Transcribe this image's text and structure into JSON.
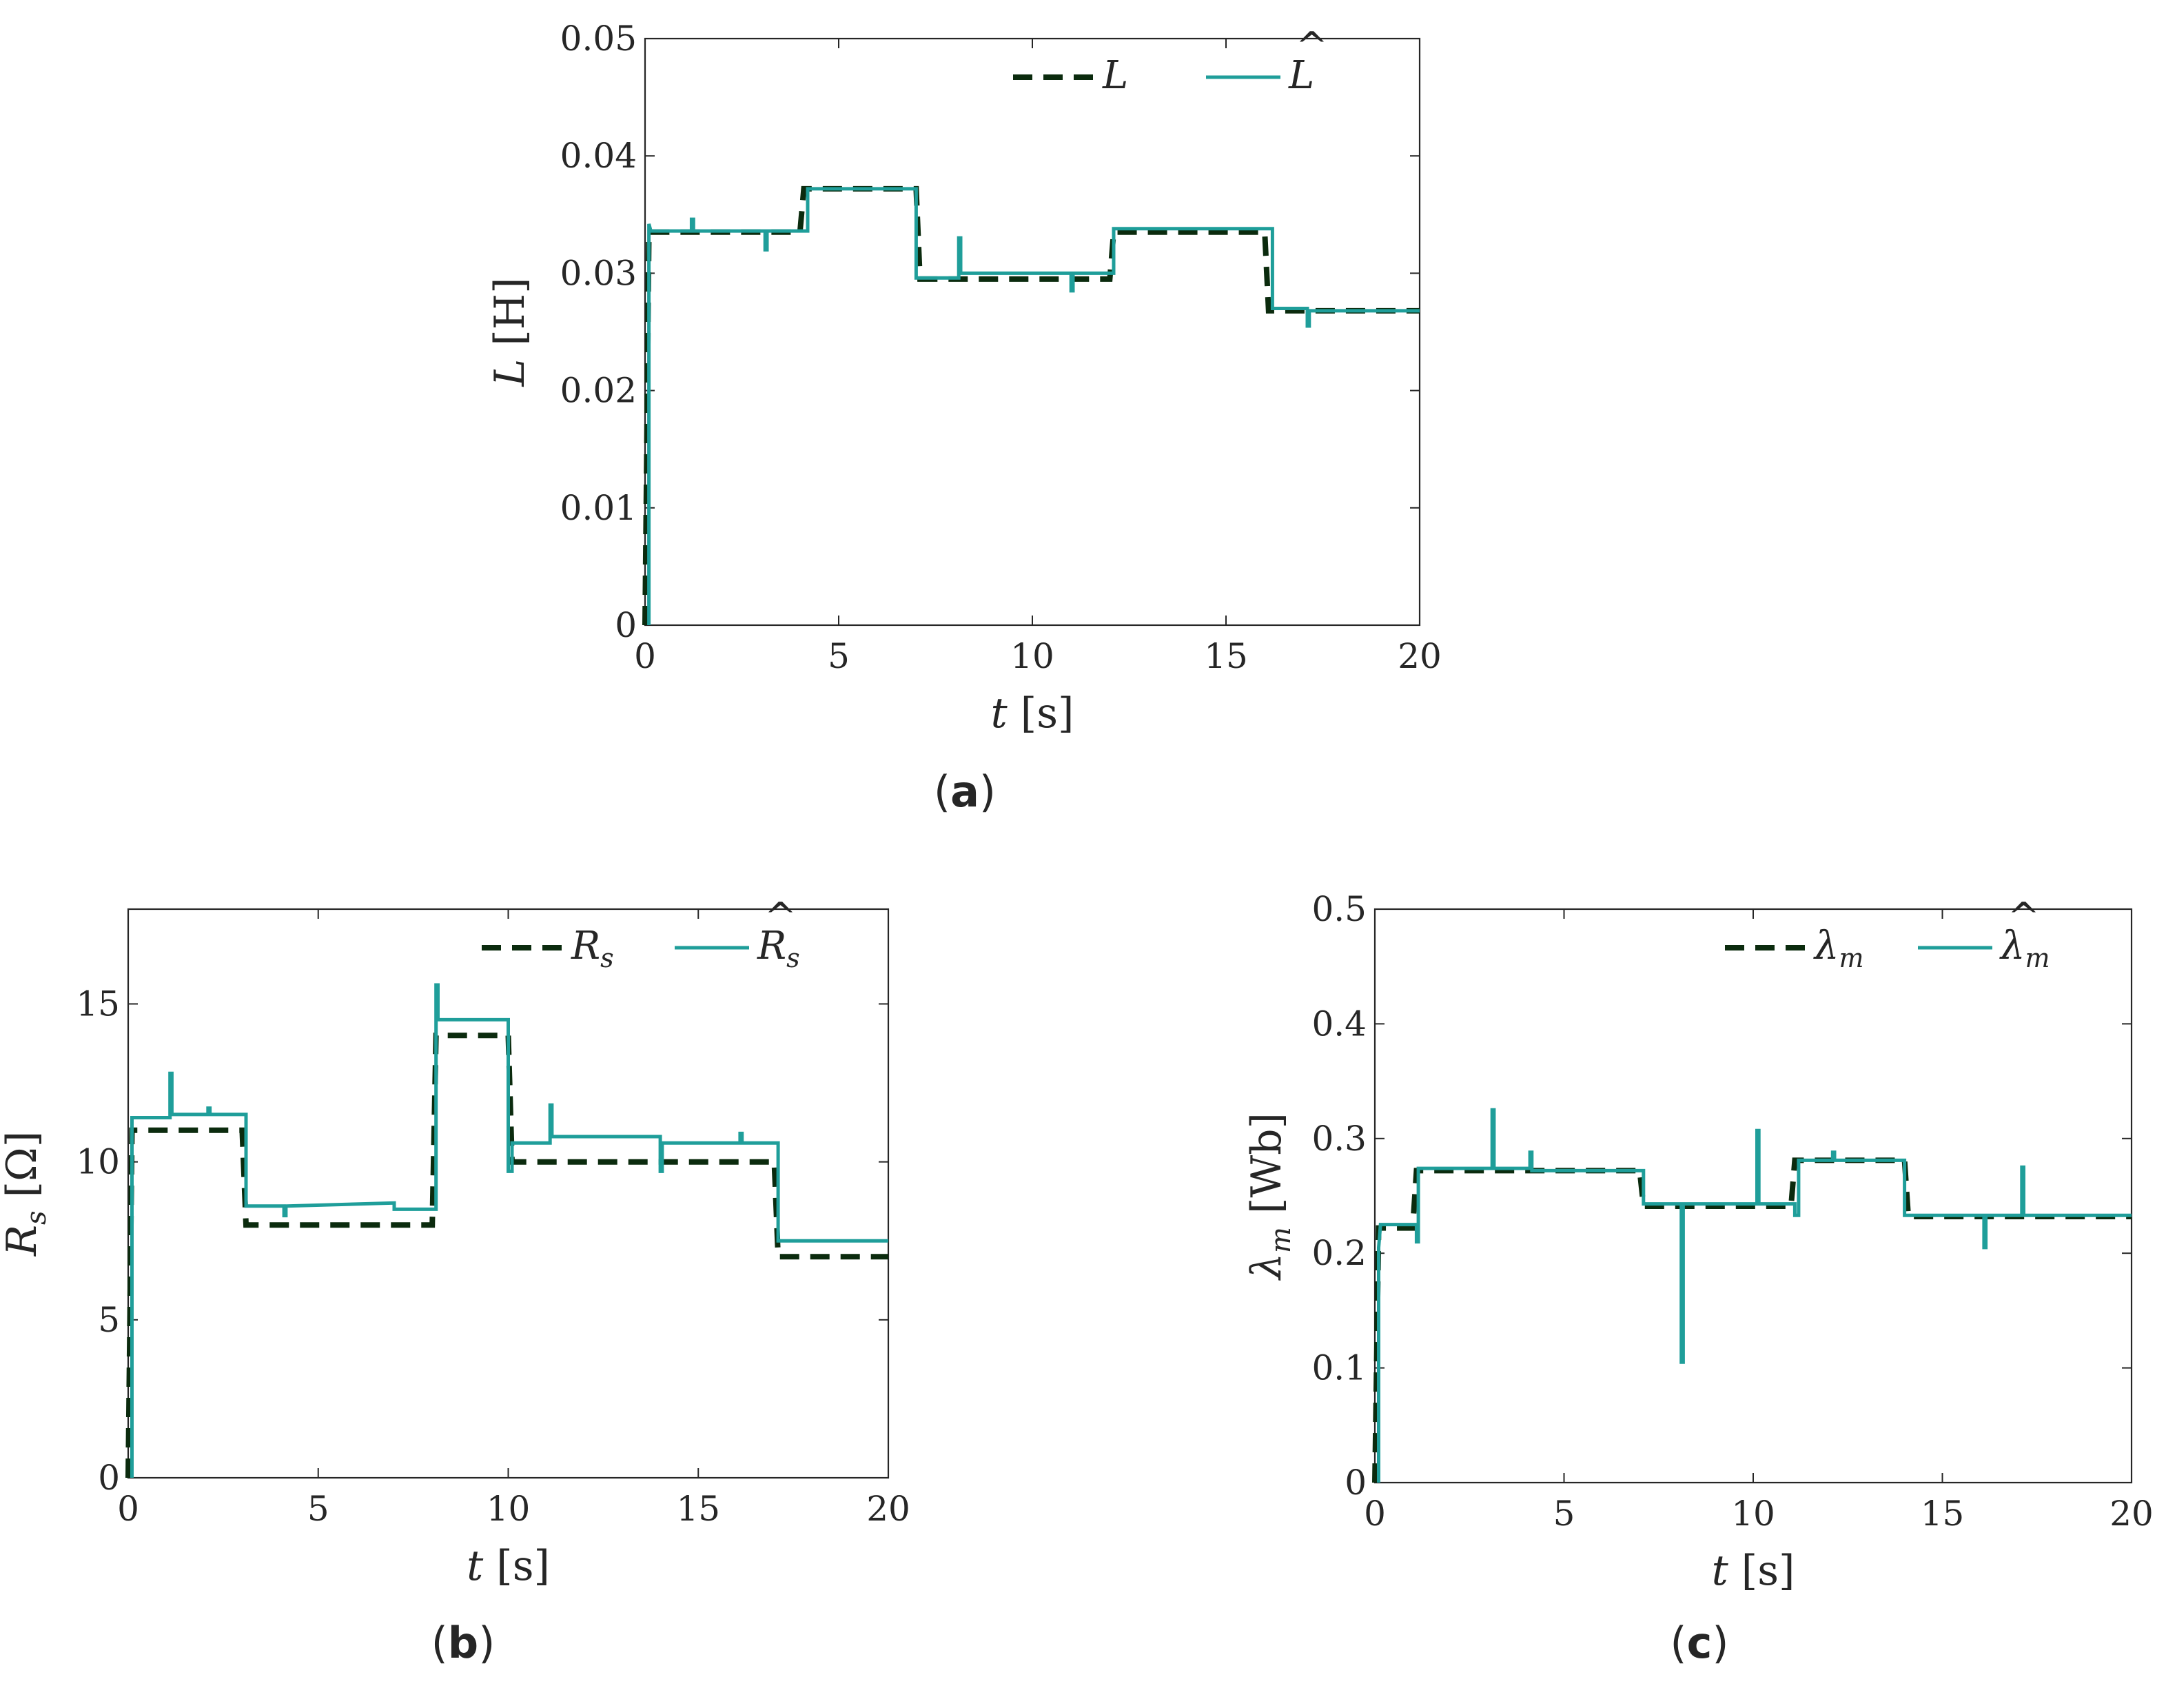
{
  "colors": {
    "true_line": "#0b2b0e",
    "estimate_line": "#1f9e9a",
    "axes": "#262626"
  },
  "chart_data": [
    {
      "id": "a",
      "type": "line",
      "caption_letter": "a",
      "xlabel_var": "t",
      "xlabel_unit": "[s]",
      "ylabel_var": "L",
      "ylabel_unit": "[H]",
      "xlim": [
        0,
        20
      ],
      "ylim": [
        0,
        0.05
      ],
      "xticks": [
        "0",
        "5",
        "10",
        "15",
        "20"
      ],
      "yticks": [
        "0",
        "0.01",
        "0.02",
        "0.03",
        "0.04",
        "0.05"
      ],
      "legend": {
        "position": "top-right",
        "true_label": "L",
        "est_label": "L",
        "est_accent": "^"
      },
      "series": [
        {
          "name": "L",
          "style": "dashed",
          "x": [
            0,
            0,
            0.1,
            4,
            4.1,
            7,
            7.1,
            12,
            12.1,
            16,
            16.1,
            20
          ],
          "y": [
            0,
            0,
            0.0335,
            0.0335,
            0.0372,
            0.0372,
            0.0295,
            0.0295,
            0.0335,
            0.0335,
            0.0268,
            0.0268
          ]
        },
        {
          "name": "L_hat",
          "style": "solid",
          "x": [
            0.1,
            0.1,
            0.15,
            1.2,
            1.2,
            1.25,
            1.25,
            3.1,
            3.1,
            3.15,
            3.15,
            4.2,
            4.2,
            7,
            7,
            7.1,
            7.1,
            8.1,
            8.1,
            8.15,
            8.15,
            11,
            11,
            11.05,
            11.05,
            12.1,
            12.1,
            16.2,
            16.2,
            17.1,
            17.1,
            17.15,
            17.15,
            20
          ],
          "y": [
            0,
            0.0342,
            0.0336,
            0.0336,
            0.0346,
            0.0346,
            0.0336,
            0.0336,
            0.032,
            0.032,
            0.0336,
            0.0336,
            0.0372,
            0.0372,
            0.0296,
            0.0296,
            0.0296,
            0.0296,
            0.033,
            0.033,
            0.03,
            0.03,
            0.0285,
            0.0285,
            0.03,
            0.03,
            0.0338,
            0.0338,
            0.027,
            0.027,
            0.0255,
            0.0255,
            0.0268,
            0.0268
          ]
        }
      ]
    },
    {
      "id": "b",
      "type": "line",
      "caption_letter": "b",
      "xlabel_var": "t",
      "xlabel_unit": "[s]",
      "ylabel_var": "R",
      "ylabel_sub": "s",
      "ylabel_unit": "[Ω]",
      "xlim": [
        0,
        20
      ],
      "ylim": [
        0,
        18
      ],
      "xticks": [
        "0",
        "5",
        "10",
        "15",
        "20"
      ],
      "yticks": [
        "0",
        "5",
        "10",
        "15"
      ],
      "ytick_values": [
        0,
        5,
        10,
        15
      ],
      "legend": {
        "position": "top-right",
        "true_label": "R",
        "true_sub": "s",
        "est_label": "R",
        "est_sub": "s",
        "est_accent": "^"
      },
      "series": [
        {
          "name": "R_s",
          "style": "dashed",
          "x": [
            0,
            0,
            0.1,
            3,
            3.1,
            8,
            8.1,
            10,
            10.1,
            17,
            17.1,
            20
          ],
          "y": [
            0,
            0,
            11,
            11,
            8,
            8,
            14,
            14,
            10,
            10,
            7,
            7
          ]
        },
        {
          "name": "R_s_hat",
          "style": "solid",
          "x": [
            0.1,
            0.1,
            0.15,
            1.1,
            1.1,
            1.15,
            1.15,
            2.1,
            2.1,
            2.15,
            2.15,
            3.1,
            3.1,
            4.1,
            4.1,
            4.15,
            4.15,
            7,
            7,
            8.1,
            8.1,
            8.15,
            8.15,
            10,
            10,
            10.1,
            10.1,
            11.1,
            11.1,
            11.15,
            11.15,
            14,
            14,
            14.05,
            14.05,
            16.1,
            16.1,
            16.15,
            16.15,
            17.1,
            17.1,
            20
          ],
          "y": [
            0,
            11.4,
            11.4,
            11.4,
            12.8,
            12.8,
            11.5,
            11.5,
            11.7,
            11.7,
            11.5,
            11.5,
            8.6,
            8.6,
            8.3,
            8.3,
            8.6,
            8.7,
            8.5,
            8.5,
            15.6,
            15.6,
            14.5,
            14.5,
            9.7,
            9.7,
            10.6,
            10.6,
            11.8,
            11.8,
            10.8,
            10.8,
            9.7,
            9.7,
            10.6,
            10.6,
            10.9,
            10.9,
            10.6,
            10.6,
            7.5,
            7.5
          ]
        }
      ]
    },
    {
      "id": "c",
      "type": "line",
      "caption_letter": "c",
      "xlabel_var": "t",
      "xlabel_unit": "[s]",
      "ylabel_var": "λ",
      "ylabel_sub": "m",
      "ylabel_unit": "[Wb]",
      "xlim": [
        0,
        20
      ],
      "ylim": [
        0,
        0.5
      ],
      "xticks": [
        "0",
        "5",
        "10",
        "15",
        "20"
      ],
      "yticks": [
        "0",
        "0.1",
        "0.2",
        "0.3",
        "0.4",
        "0.5"
      ],
      "legend": {
        "position": "top-right",
        "true_label": "λ",
        "true_sub": "m",
        "est_label": "λ",
        "est_sub": "m",
        "est_accent": "^"
      },
      "series": [
        {
          "name": "lambda_m",
          "style": "dashed",
          "x": [
            0,
            0,
            0.1,
            1,
            1.1,
            7,
            7.1,
            11,
            11.1,
            14,
            14.1,
            20
          ],
          "y": [
            0,
            0,
            0.222,
            0.222,
            0.272,
            0.272,
            0.241,
            0.241,
            0.281,
            0.281,
            0.232,
            0.232
          ]
        },
        {
          "name": "lambda_m_hat",
          "style": "solid",
          "x": [
            0.1,
            0.1,
            0.15,
            1.1,
            1.1,
            1.15,
            1.15,
            3.1,
            3.1,
            3.15,
            3.15,
            4.1,
            4.1,
            4.15,
            4.15,
            7.1,
            7.1,
            8.1,
            8.1,
            8.15,
            8.15,
            10.1,
            10.1,
            10.15,
            10.15,
            11.1,
            11.1,
            11.2,
            11.2,
            12.1,
            12.1,
            12.15,
            12.15,
            14,
            14,
            16.1,
            16.1,
            16.15,
            16.15,
            17.1,
            17.1,
            17.15,
            17.15,
            20
          ],
          "y": [
            0,
            0.205,
            0.225,
            0.225,
            0.21,
            0.21,
            0.274,
            0.274,
            0.325,
            0.325,
            0.274,
            0.274,
            0.288,
            0.288,
            0.272,
            0.272,
            0.243,
            0.243,
            0.105,
            0.105,
            0.243,
            0.243,
            0.307,
            0.307,
            0.243,
            0.243,
            0.233,
            0.233,
            0.281,
            0.281,
            0.288,
            0.288,
            0.281,
            0.281,
            0.233,
            0.233,
            0.205,
            0.205,
            0.233,
            0.233,
            0.275,
            0.275,
            0.233,
            0.233
          ]
        }
      ]
    }
  ]
}
